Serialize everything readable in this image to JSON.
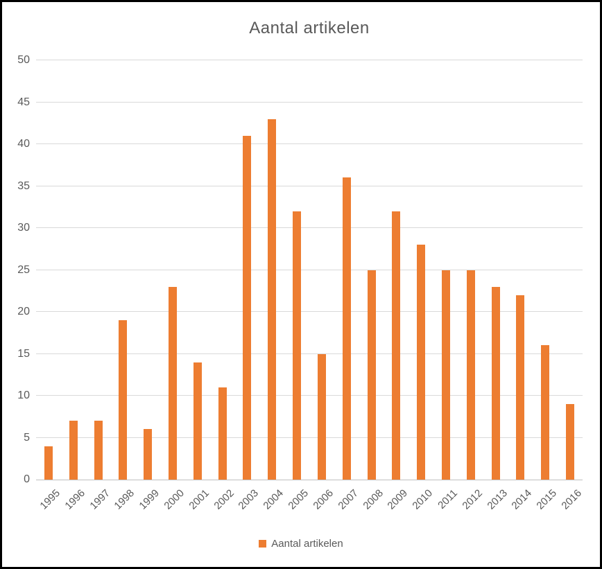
{
  "chart_data": {
    "type": "bar",
    "title": "Aantal artikelen",
    "series_name": "Aantal artikelen",
    "categories": [
      "1995",
      "1996",
      "1997",
      "1998",
      "1999",
      "2000",
      "2001",
      "2002",
      "2003",
      "2004",
      "2005",
      "2006",
      "2007",
      "2008",
      "2009",
      "2010",
      "2011",
      "2012",
      "2013",
      "2014",
      "2015",
      "2016"
    ],
    "values": [
      4,
      7,
      7,
      19,
      6,
      23,
      14,
      11,
      41,
      43,
      32,
      15,
      36,
      25,
      32,
      28,
      25,
      25,
      23,
      22,
      16,
      9
    ],
    "yticks": [
      0,
      5,
      10,
      15,
      20,
      25,
      30,
      35,
      40,
      45,
      50
    ],
    "ylim": [
      0,
      50
    ],
    "xlabel": "",
    "ylabel": "",
    "grid": true,
    "legend_position": "bottom",
    "colors": {
      "bar": "#ED7D31",
      "gridline": "#D9D9D9",
      "axis_line": "#BFBFBF",
      "text": "#595959",
      "frame_border": "#000000",
      "background": "#FFFFFF"
    }
  }
}
